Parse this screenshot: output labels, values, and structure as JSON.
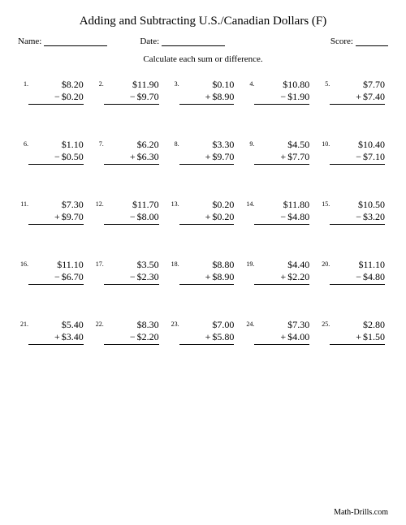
{
  "title": "Adding and Subtracting U.S./Canadian Dollars (F)",
  "meta": {
    "name_label": "Name:",
    "date_label": "Date:",
    "score_label": "Score:"
  },
  "instruction": "Calculate each sum or difference.",
  "footer": "Math-Drills.com",
  "style": {
    "name_line_width": 78,
    "date_line_width": 78,
    "score_line_width": 40,
    "background_color": "#ffffff",
    "text_color": "#000000",
    "title_fontsize": 15,
    "meta_fontsize": 11,
    "problem_fontsize": 12,
    "number_fontsize": 8,
    "columns": 5,
    "rows": 5
  },
  "problems": [
    {
      "n": "1.",
      "top": "$8.20",
      "op": "−",
      "bot": "$0.20"
    },
    {
      "n": "2.",
      "top": "$11.90",
      "op": "−",
      "bot": "$9.70"
    },
    {
      "n": "3.",
      "top": "$0.10",
      "op": "+",
      "bot": "$8.90"
    },
    {
      "n": "4.",
      "top": "$10.80",
      "op": "−",
      "bot": "$1.90"
    },
    {
      "n": "5.",
      "top": "$7.70",
      "op": "+",
      "bot": "$7.40"
    },
    {
      "n": "6.",
      "top": "$1.10",
      "op": "−",
      "bot": "$0.50"
    },
    {
      "n": "7.",
      "top": "$6.20",
      "op": "+",
      "bot": "$6.30"
    },
    {
      "n": "8.",
      "top": "$3.30",
      "op": "+",
      "bot": "$9.70"
    },
    {
      "n": "9.",
      "top": "$4.50",
      "op": "+",
      "bot": "$7.70"
    },
    {
      "n": "10.",
      "top": "$10.40",
      "op": "−",
      "bot": "$7.10"
    },
    {
      "n": "11.",
      "top": "$7.30",
      "op": "+",
      "bot": "$9.70"
    },
    {
      "n": "12.",
      "top": "$11.70",
      "op": "−",
      "bot": "$8.00"
    },
    {
      "n": "13.",
      "top": "$0.20",
      "op": "+",
      "bot": "$0.20"
    },
    {
      "n": "14.",
      "top": "$11.80",
      "op": "−",
      "bot": "$4.80"
    },
    {
      "n": "15.",
      "top": "$10.50",
      "op": "−",
      "bot": "$3.20"
    },
    {
      "n": "16.",
      "top": "$11.10",
      "op": "−",
      "bot": "$6.70"
    },
    {
      "n": "17.",
      "top": "$3.50",
      "op": "−",
      "bot": "$2.30"
    },
    {
      "n": "18.",
      "top": "$8.80",
      "op": "+",
      "bot": "$8.90"
    },
    {
      "n": "19.",
      "top": "$4.40",
      "op": "+",
      "bot": "$2.20"
    },
    {
      "n": "20.",
      "top": "$11.10",
      "op": "−",
      "bot": "$4.80"
    },
    {
      "n": "21.",
      "top": "$5.40",
      "op": "+",
      "bot": "$3.40"
    },
    {
      "n": "22.",
      "top": "$8.30",
      "op": "−",
      "bot": "$2.20"
    },
    {
      "n": "23.",
      "top": "$7.00",
      "op": "+",
      "bot": "$5.80"
    },
    {
      "n": "24.",
      "top": "$7.30",
      "op": "+",
      "bot": "$4.00"
    },
    {
      "n": "25.",
      "top": "$2.80",
      "op": "+",
      "bot": "$1.50"
    }
  ]
}
